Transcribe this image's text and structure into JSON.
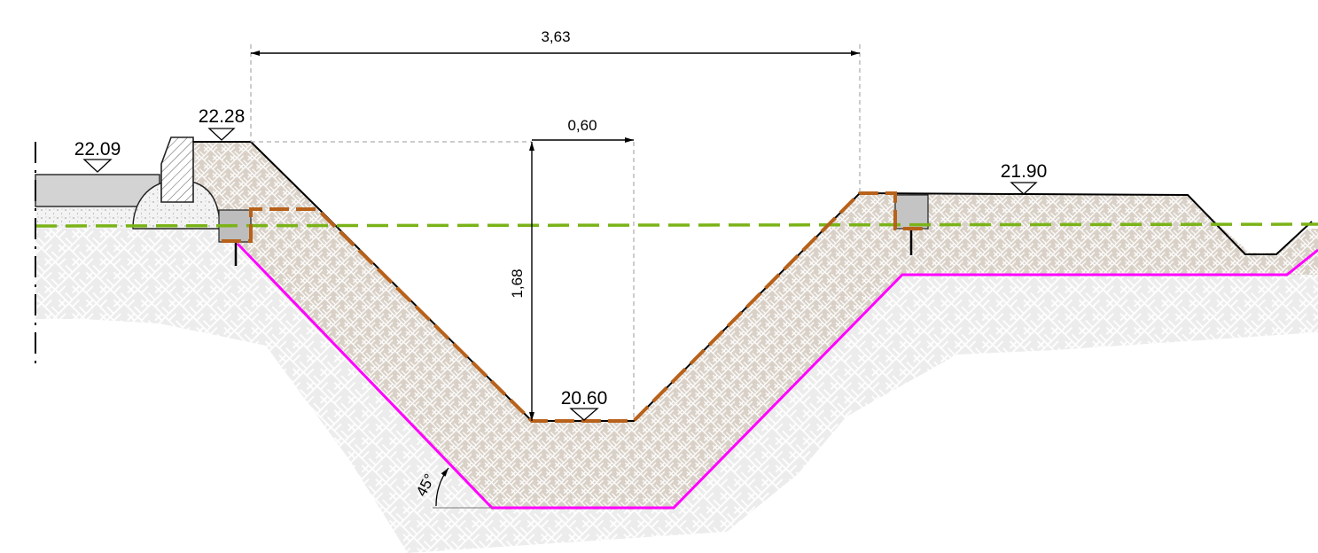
{
  "dimensions": {
    "total_width": "3,63",
    "bottom_width": "0,60",
    "depth": "1,68",
    "slope_angle": "45°"
  },
  "elevations": {
    "road_left": "22.09",
    "crest_left": "22.28",
    "ditch_bottom": "20.60",
    "ground_right": "21.90"
  },
  "colors": {
    "existing_ground_line": "#7ab317",
    "design_outline": "#b8611a",
    "excavation_boundary": "#ff00ff",
    "fill_material": "#d9d1c7",
    "natural_ground": "#ececec"
  }
}
